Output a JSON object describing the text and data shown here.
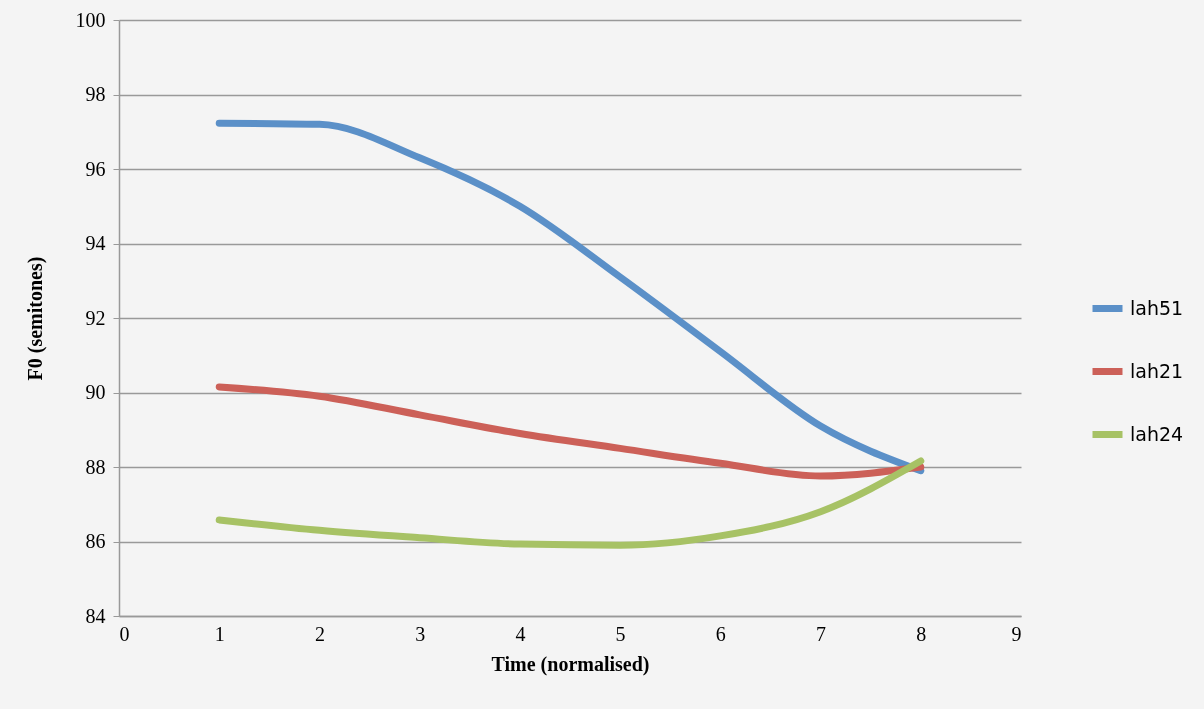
{
  "chart_data": {
    "type": "line",
    "xlabel": "Time (normalised)",
    "ylabel": "F0 (semitones)",
    "x": [
      1,
      2,
      3,
      4,
      5,
      6,
      7,
      8
    ],
    "series": [
      {
        "name": "lah51",
        "color": "#5b90c8",
        "values": [
          97.23,
          97.2,
          96.3,
          95.0,
          93.1,
          91.1,
          89.1,
          87.9
        ]
      },
      {
        "name": "lah21",
        "color": "#cc6058",
        "values": [
          90.15,
          89.9,
          89.4,
          88.9,
          88.5,
          88.1,
          87.76,
          88.0
        ]
      },
      {
        "name": "lah24",
        "color": "#a7c265",
        "values": [
          86.58,
          86.3,
          86.1,
          85.93,
          85.9,
          86.15,
          86.8,
          88.16
        ]
      }
    ],
    "xlim": [
      0,
      9
    ],
    "xticks": [
      0,
      1,
      2,
      3,
      4,
      5,
      6,
      7,
      8,
      9
    ],
    "ylim": [
      84,
      100
    ],
    "yticks": [
      84,
      86,
      88,
      90,
      92,
      94,
      96,
      98,
      100
    ],
    "grid": "y",
    "legend": "right",
    "marker": "none",
    "line_style": "solid"
  }
}
